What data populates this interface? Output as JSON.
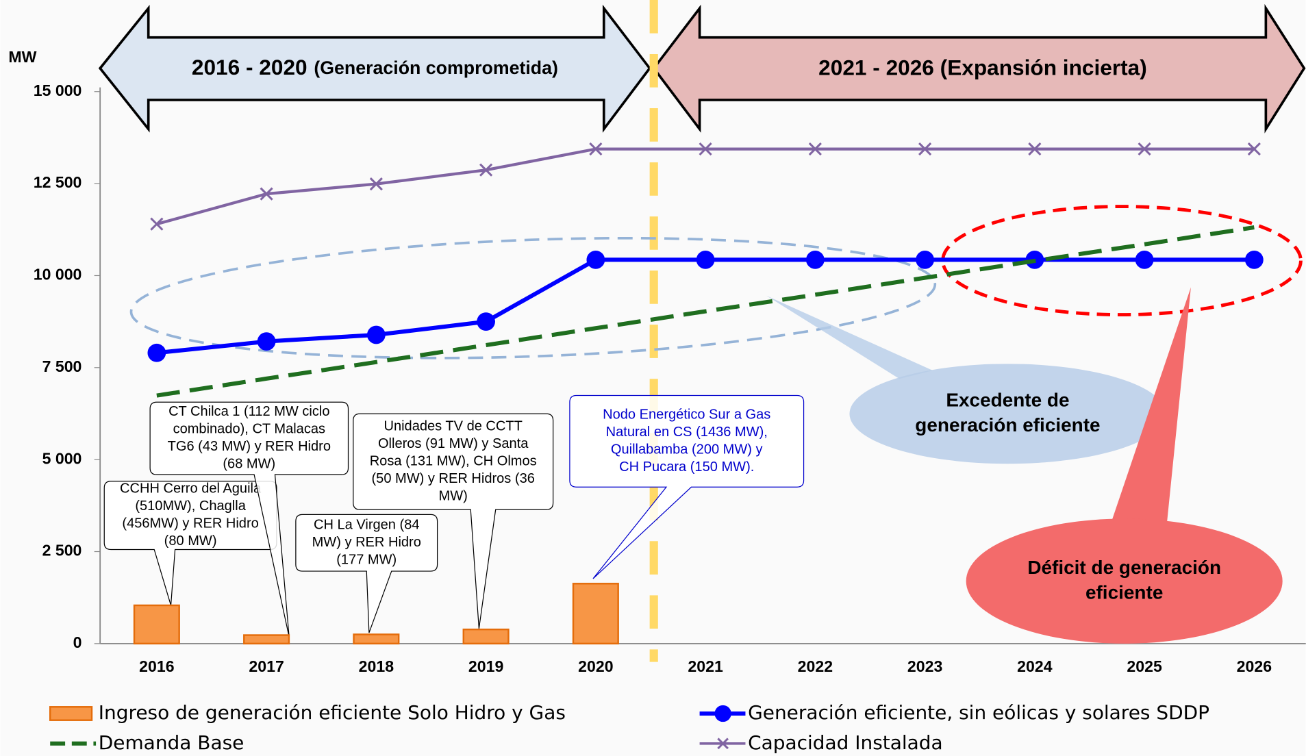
{
  "chart_data": {
    "type": "combo",
    "y_label": "MW",
    "period_left": {
      "years": "2016 - 2020",
      "text": "(Generación comprometida)"
    },
    "period_right": "2021 - 2026 (Expansión incierta)",
    "categories": [
      "2016",
      "2017",
      "2018",
      "2019",
      "2020",
      "2021",
      "2022",
      "2023",
      "2024",
      "2025",
      "2026"
    ],
    "ylim": [
      0,
      15000
    ],
    "yticks": [
      0,
      {
        "value": 2500,
        "label": "2 500"
      },
      {
        "value": 5000,
        "label": "5 000"
      },
      {
        "value": 7500,
        "label": "7 500"
      },
      {
        "value": 10000,
        "label": "10 000"
      },
      {
        "value": 12500,
        "label": "12 500"
      },
      {
        "value": 15000,
        "label": "15 000"
      }
    ],
    "series": [
      {
        "name": "Ingreso de generación eficiente Solo Hidro y Gas",
        "kind": "bar",
        "color": "#f79646",
        "values": [
          1040,
          230,
          250,
          385,
          1630,
          null,
          null,
          null,
          null,
          null,
          null
        ]
      },
      {
        "name": "Generación eficiente, sin eólicas y solares SDDP",
        "kind": "line-dot",
        "color": "#0000ff",
        "values": [
          7900,
          8210,
          8390,
          8750,
          10430,
          10430,
          10430,
          10430,
          10430,
          10430,
          10430
        ]
      },
      {
        "name": "Demanda Base",
        "kind": "dashed",
        "color": "#1f6e1f",
        "values": [
          6740,
          7200,
          7650,
          8110,
          8570,
          9030,
          9480,
          9940,
          10400,
          10850,
          11310
        ]
      },
      {
        "name": "Capacidad Instalada",
        "kind": "line-x",
        "color": "#8064a2",
        "values": [
          11400,
          12220,
          12490,
          12870,
          13440,
          13440,
          13440,
          13440,
          13440,
          13440,
          13440
        ]
      }
    ],
    "annotations": [
      {
        "lines": [
          "CCHH Cerro del Aguila",
          "(510MW),  Chaglla",
          "(456MW) y RER Hidro",
          "(80 MW)"
        ]
      },
      {
        "lines": [
          "CT Chilca 1 (112 MW ciclo",
          "combinado),  CT Malacas",
          "TG6 (43 MW) y RER  Hidro",
          "(68 MW)"
        ]
      },
      {
        "lines": [
          "CH La Virgen  (84",
          "MW) y RER Hidro",
          "(177 MW)"
        ]
      },
      {
        "lines": [
          "Unidades TV de CCTT",
          "Olleros (91 MW) y Santa",
          "Rosa (131 MW), CH Olmos",
          "(50 MW) y RER Hidros (36",
          "MW)"
        ]
      },
      {
        "lines": [
          "Nodo Energético Sur a Gas",
          "Natural en CS (1436 MW),",
          "Quillabamba (200 MW) y",
          "CH Pucara (150 MW)."
        ]
      }
    ],
    "surplus_note": [
      "Excedente de",
      "generación  eficiente"
    ],
    "deficit_note": [
      "Déficit de generación",
      "eficiente"
    ]
  }
}
